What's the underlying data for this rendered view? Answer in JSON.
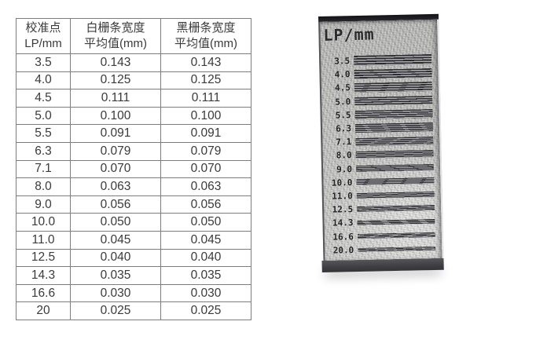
{
  "table": {
    "headers": [
      "校准点\nLP/mm",
      "白栅条宽度\n平均值(mm)",
      "黑栅条宽度\n平均值(mm)"
    ],
    "rows": [
      [
        "3.5",
        "0.143",
        "0.143"
      ],
      [
        "4.0",
        "0.125",
        "0.125"
      ],
      [
        "4.5",
        "0.111",
        "0.111"
      ],
      [
        "5.0",
        "0.100",
        "0.100"
      ],
      [
        "5.5",
        "0.091",
        "0.091"
      ],
      [
        "6.3",
        "0.079",
        "0.079"
      ],
      [
        "7.1",
        "0.070",
        "0.070"
      ],
      [
        "8.0",
        "0.063",
        "0.063"
      ],
      [
        "9.0",
        "0.056",
        "0.056"
      ],
      [
        "10.0",
        "0.050",
        "0.050"
      ],
      [
        "11.0",
        "0.045",
        "0.045"
      ],
      [
        "12.5",
        "0.040",
        "0.040"
      ],
      [
        "14.3",
        "0.035",
        "0.035"
      ],
      [
        "16.6",
        "0.030",
        "0.030"
      ],
      [
        "20",
        "0.025",
        "0.025"
      ]
    ],
    "border_color": "#7d7d7d",
    "text_color": "#3a3a3a"
  },
  "plate": {
    "title": "LP/mm",
    "labels": [
      "3.5",
      "4.0",
      "4.5",
      "5.0",
      "5.5",
      "6.3",
      "7.1",
      "8.0",
      "9.0",
      "10.0",
      "11.0",
      "12.5",
      "14.3",
      "16.6",
      "20.0"
    ],
    "body_color": "#b9bab6",
    "edge_color": "#26262b",
    "line_color": "#2d2d31"
  }
}
